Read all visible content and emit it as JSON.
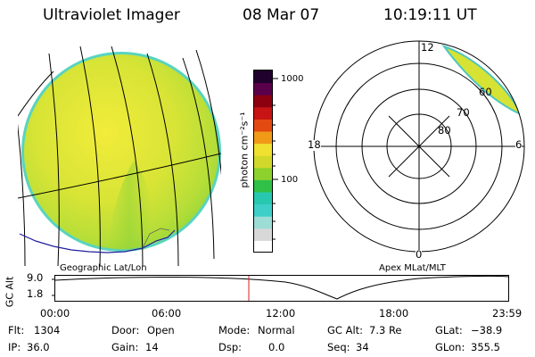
{
  "header": {
    "instrument": "Ultraviolet Imager",
    "date": "08 Mar 07",
    "time": "10:19:11 UT"
  },
  "colorbar": {
    "unit_label": "photon cm⁻²s⁻¹",
    "ticks": [
      "1000",
      "100"
    ],
    "palette": [
      "#ffffff",
      "#d8d8d8",
      "#9edcd6",
      "#3ecfc8",
      "#28c8b0",
      "#30c048",
      "#8cd12c",
      "#d2d82a",
      "#f0e030",
      "#f09a18",
      "#e24a12",
      "#c81414",
      "#8c0010",
      "#5a004a",
      "#20002c"
    ]
  },
  "polar_plot": {
    "clock_labels": {
      "top": "12",
      "left": "18",
      "right": "6",
      "bottom": "0"
    },
    "lat_labels": [
      "60",
      "70",
      "80"
    ]
  },
  "projection_labels": {
    "left": "Geographic Lat/Lon",
    "right": "Apex MLat/MLT"
  },
  "altitude_plot": {
    "axis_label": "GC Alt",
    "ticks": [
      "9.0",
      "1.8"
    ],
    "time_ticks": [
      "00:00",
      "06:00",
      "12:00",
      "18:00",
      "23:59"
    ],
    "current_time_marker": "10:19:11",
    "marker_color": "#d02020"
  },
  "status": {
    "flt": {
      "label": "Flt:",
      "value": "1304"
    },
    "ip": {
      "label": "IP:",
      "value": "36.0"
    },
    "door": {
      "label": "Door:",
      "value": "Open"
    },
    "gain": {
      "label": "Gain:",
      "value": "14"
    },
    "mode": {
      "label": "Mode:",
      "value": "Normal"
    },
    "dsp": {
      "label": "Dsp:",
      "value": "0.0"
    },
    "gcalt": {
      "label": "GC Alt:",
      "value": "7.3 Re"
    },
    "seq": {
      "label": "Seq:",
      "value": "34"
    },
    "glat": {
      "label": "GLat:",
      "value": "−38.9"
    },
    "glon": {
      "label": "GLon:",
      "value": "355.5"
    }
  }
}
